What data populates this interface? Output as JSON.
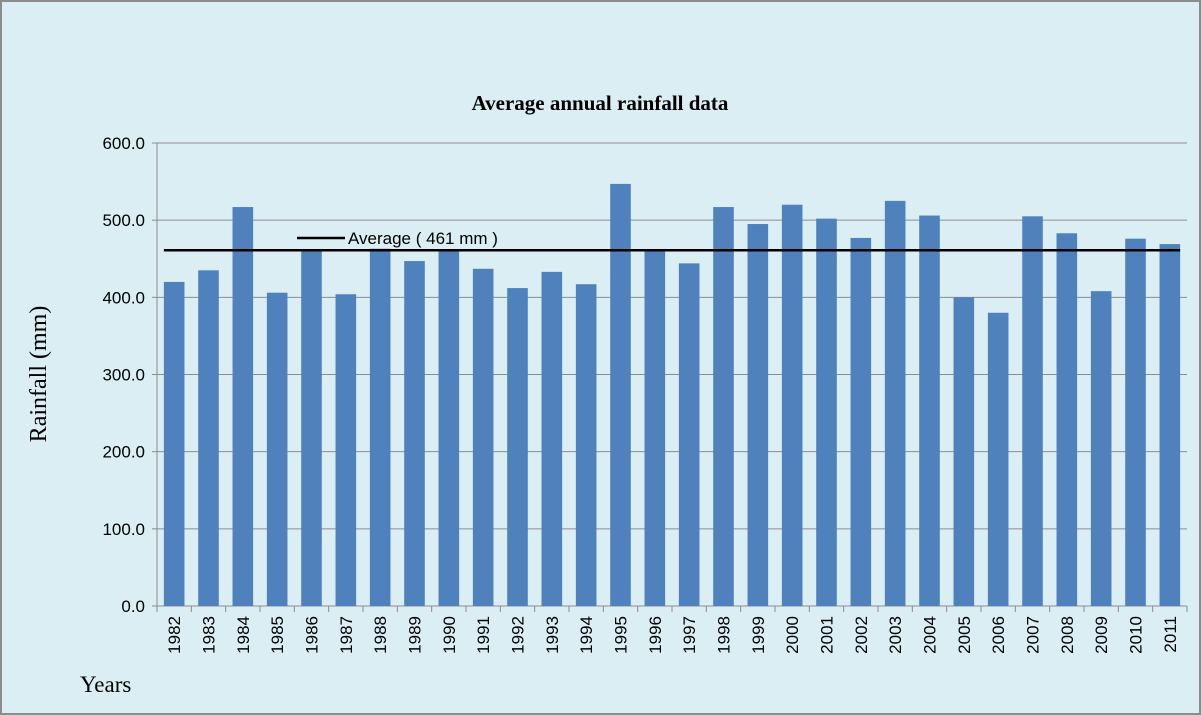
{
  "chart_data": {
    "type": "bar",
    "title": "Average annual rainfall data",
    "y_label": "Rainfall (mm)",
    "x_label": "Years",
    "categories": [
      "1982",
      "1983",
      "1984",
      "1985",
      "1986",
      "1987",
      "1988",
      "1989",
      "1990",
      "1991",
      "1992",
      "1993",
      "1994",
      "1995",
      "1996",
      "1997",
      "1998",
      "1999",
      "2000",
      "2001",
      "2002",
      "2003",
      "2004",
      "2005",
      "2006",
      "2007",
      "2008",
      "2009",
      "2010",
      "2011"
    ],
    "values": [
      420,
      435,
      517,
      406,
      462,
      404,
      463,
      447,
      462,
      437,
      412,
      433,
      417,
      547,
      462,
      444,
      517,
      495,
      520,
      502,
      477,
      525,
      506,
      400,
      380,
      505,
      483,
      408,
      476,
      469
    ],
    "color": "#4f81bd",
    "ylim": [
      0,
      600
    ],
    "yticks": [
      {
        "value": 0,
        "label": "0.0"
      },
      {
        "value": 100,
        "label": "100.0"
      },
      {
        "value": 200,
        "label": "200.0"
      },
      {
        "value": 300,
        "label": "300.0"
      },
      {
        "value": 400,
        "label": "400.0"
      },
      {
        "value": 500,
        "label": "500.0"
      },
      {
        "value": 600,
        "label": "600.0"
      }
    ],
    "grid": true,
    "average": 461,
    "average_label": "Average ( 461 mm )",
    "average_color": "#000000"
  }
}
